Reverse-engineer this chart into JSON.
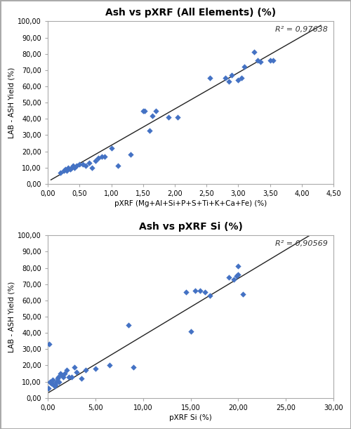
{
  "chart1": {
    "title": "Ash vs pXRF (All Elements) (%)",
    "xlabel": "pXRF (Mg+Al+Si+P+S+Ti+K+Ca+Fe) (%)",
    "ylabel": "LAB - ASH Yield (%)",
    "r2_text": "R² = 0,97638",
    "xlim": [
      0,
      4.5
    ],
    "ylim": [
      0,
      100
    ],
    "xticks": [
      0.0,
      0.5,
      1.0,
      1.5,
      2.0,
      2.5,
      3.0,
      3.5,
      4.0,
      4.5
    ],
    "yticks": [
      0,
      10,
      20,
      30,
      40,
      50,
      60,
      70,
      80,
      90,
      100
    ],
    "ytick_labels": [
      "0,00",
      "10,00",
      "20,00",
      "30,00",
      "40,00",
      "50,00",
      "60,00",
      "70,00",
      "80,00",
      "90,00",
      "100,00"
    ],
    "xtick_labels": [
      "0,00",
      "0,50",
      "1,00",
      "1,50",
      "2,00",
      "2,50",
      "3,00",
      "3,50",
      "4,00",
      "4,50"
    ],
    "scatter_x": [
      0.2,
      0.25,
      0.28,
      0.3,
      0.32,
      0.35,
      0.38,
      0.4,
      0.42,
      0.45,
      0.5,
      0.55,
      0.6,
      0.65,
      0.7,
      0.75,
      0.8,
      0.85,
      0.9,
      1.0,
      1.1,
      1.3,
      1.5,
      1.52,
      1.6,
      1.65,
      1.7,
      1.9,
      2.05,
      2.55,
      2.8,
      2.85,
      2.9,
      3.0,
      3.05,
      3.1,
      3.25,
      3.3,
      3.35,
      3.5,
      3.55
    ],
    "scatter_y": [
      7,
      8,
      9,
      8,
      10,
      9,
      10,
      11,
      10,
      11,
      12,
      12,
      11,
      13,
      10,
      14,
      16,
      17,
      17,
      22,
      11,
      18,
      45,
      45,
      33,
      42,
      45,
      41,
      41,
      65,
      65,
      63,
      67,
      64,
      65,
      72,
      81,
      76,
      75,
      76,
      76
    ],
    "trendline_x": [
      0.05,
      4.3
    ],
    "trendline_y": [
      2.5,
      97.5
    ],
    "scatter_color": "#4472C4",
    "scatter_size": 18,
    "line_color": "#222222"
  },
  "chart2": {
    "title": "Ash vs pXRF Si (%)",
    "xlabel": "pXRF Si (%)",
    "ylabel": "LAB - ASH Yield (%)",
    "r2_text": "R² = 0,90569",
    "xlim": [
      0,
      30
    ],
    "ylim": [
      0,
      100
    ],
    "xticks": [
      0,
      5,
      10,
      15,
      20,
      25,
      30
    ],
    "yticks": [
      0,
      10,
      20,
      30,
      40,
      50,
      60,
      70,
      80,
      90,
      100
    ],
    "ytick_labels": [
      "0,00",
      "10,00",
      "20,00",
      "30,00",
      "40,00",
      "50,00",
      "60,00",
      "70,00",
      "80,00",
      "90,00",
      "100,00"
    ],
    "xtick_labels": [
      "0,00",
      "5,00",
      "10,00",
      "15,00",
      "20,00",
      "25,00",
      "30,00"
    ],
    "scatter_x": [
      0.1,
      0.2,
      0.3,
      0.4,
      0.5,
      0.6,
      0.7,
      0.8,
      0.9,
      1.0,
      1.1,
      1.2,
      1.3,
      1.5,
      1.6,
      1.8,
      2.0,
      2.2,
      2.5,
      2.8,
      3.0,
      3.5,
      4.0,
      0.15,
      5.0,
      6.5,
      8.5,
      9.0,
      14.5,
      15.0,
      15.5,
      16.0,
      16.5,
      17.0,
      19.0,
      19.5,
      19.8,
      20.0,
      20.0,
      20.5
    ],
    "scatter_y": [
      6,
      10,
      10,
      9,
      11,
      8,
      7,
      8,
      10,
      12,
      13,
      10,
      15,
      14,
      13,
      15,
      17,
      13,
      13,
      19,
      16,
      12,
      17,
      33,
      18,
      20,
      45,
      19,
      65,
      41,
      66,
      66,
      65,
      63,
      74,
      73,
      75,
      76,
      81,
      64
    ],
    "trendline_x": [
      0.0,
      27.5
    ],
    "trendline_y": [
      3.0,
      100.0
    ],
    "scatter_color": "#4472C4",
    "scatter_size": 18,
    "line_color": "#222222"
  },
  "bg_color": "#ffffff",
  "plot_bg_color": "#ffffff",
  "fig_border_color": "#aaaaaa"
}
